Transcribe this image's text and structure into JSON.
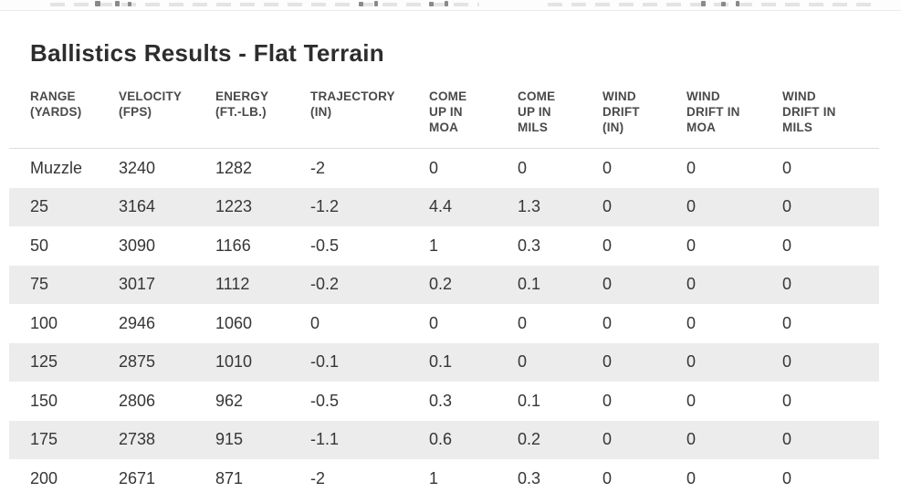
{
  "page": {
    "title": "Ballistics Results - Flat Terrain"
  },
  "colors": {
    "background": "#ffffff",
    "title_text": "#2d2d2d",
    "header_text": "#4a4a4a",
    "cell_text": "#363636",
    "row_stripe": "#ececec",
    "header_underline": "#dcdcdc",
    "top_divider": "#ececec"
  },
  "table": {
    "headers": [
      "RANGE\n(YARDS)",
      "VELOCITY\n(FPS)",
      "ENERGY\n(FT.-LB.)",
      "TRAJECTORY\n(IN)",
      "COME\nUP IN\nMOA",
      "COME\nUP IN\nMILS",
      "WIND\nDRIFT\n(IN)",
      "WIND\nDRIFT IN\nMOA",
      "WIND\nDRIFT IN\nMILS"
    ],
    "rows": [
      [
        "Muzzle",
        "3240",
        "1282",
        "-2",
        "0",
        "0",
        "0",
        "0",
        "0"
      ],
      [
        "25",
        "3164",
        "1223",
        "-1.2",
        "4.4",
        "1.3",
        "0",
        "0",
        "0"
      ],
      [
        "50",
        "3090",
        "1166",
        "-0.5",
        "1",
        "0.3",
        "0",
        "0",
        "0"
      ],
      [
        "75",
        "3017",
        "1112",
        "-0.2",
        "0.2",
        "0.1",
        "0",
        "0",
        "0"
      ],
      [
        "100",
        "2946",
        "1060",
        "0",
        "0",
        "0",
        "0",
        "0",
        "0"
      ],
      [
        "125",
        "2875",
        "1010",
        "-0.1",
        "0.1",
        "0",
        "0",
        "0",
        "0"
      ],
      [
        "150",
        "2806",
        "962",
        "-0.5",
        "0.3",
        "0.1",
        "0",
        "0",
        "0"
      ],
      [
        "175",
        "2738",
        "915",
        "-1.1",
        "0.6",
        "0.2",
        "0",
        "0",
        "0"
      ],
      [
        "200",
        "2671",
        "871",
        "-2",
        "1",
        "0.3",
        "0",
        "0",
        "0"
      ]
    ],
    "striped_row_indexes": [
      1,
      3,
      5,
      7
    ]
  }
}
